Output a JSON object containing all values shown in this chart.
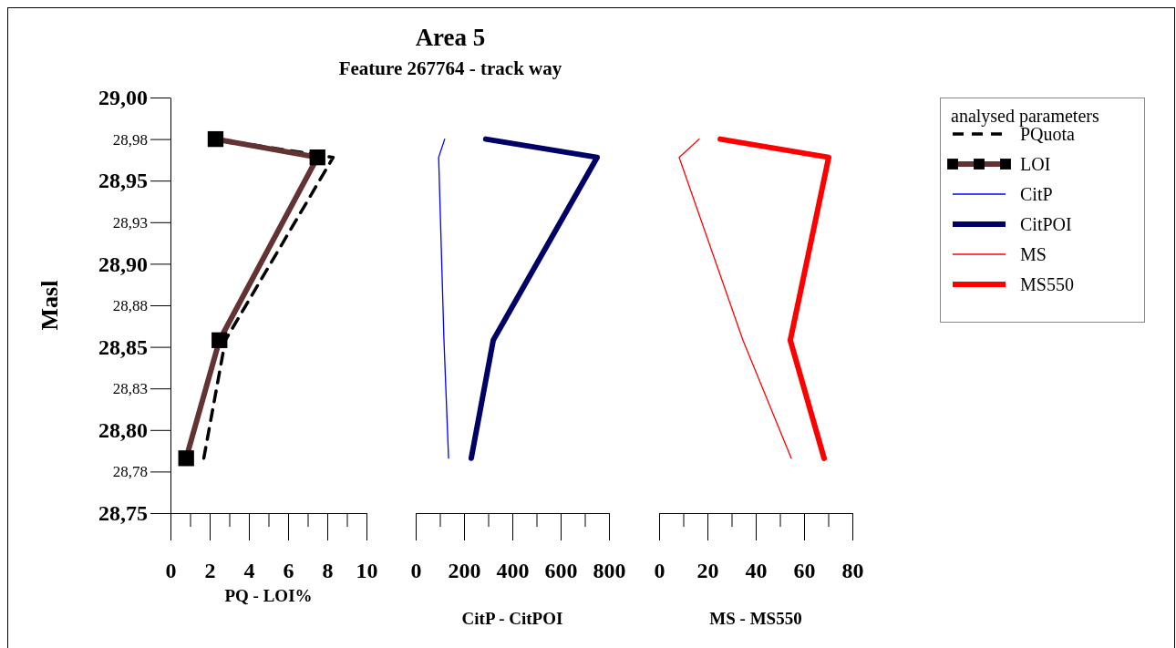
{
  "chart_data": [
    {
      "type": "line",
      "ylabel": "Masl",
      "xlabel": "PQ - LOI%",
      "legend": "right",
      "legend_title": "analysed parameters",
      "ylim": [
        28.75,
        29.0
      ],
      "yticks": [
        {
          "value": 29.0,
          "label": "29,00"
        },
        {
          "value": 28.975,
          "label": "28,98"
        },
        {
          "value": 28.95,
          "label": "28,95"
        },
        {
          "value": 28.925,
          "label": "28,93"
        },
        {
          "value": 28.9,
          "label": "28,90"
        },
        {
          "value": 28.875,
          "label": "28,88"
        },
        {
          "value": 28.85,
          "label": "28,85"
        },
        {
          "value": 28.825,
          "label": "28,83"
        },
        {
          "value": 28.8,
          "label": "28,80"
        },
        {
          "value": 28.775,
          "label": "28,78"
        },
        {
          "value": 28.75,
          "label": "28,75"
        }
      ],
      "xlim": [
        0,
        10
      ],
      "xticks": [
        0,
        {
          "value": 1,
          "label": null
        },
        2,
        {
          "value": 3,
          "label": null
        },
        4,
        {
          "value": 5,
          "label": null
        },
        6,
        {
          "value": 7,
          "label": null
        },
        8,
        {
          "value": 9,
          "label": null
        },
        10
      ],
      "series": [
        {
          "name": "PQuota",
          "color": "#000000",
          "line_style": "dashed",
          "marker": "none",
          "x": [
            2.3,
            8.3,
            2.8,
            1.7
          ],
          "values": [
            28.975,
            28.964,
            28.854,
            28.783
          ]
        },
        {
          "name": "LOI",
          "color": "#633333",
          "line_style": "solid",
          "marker": "square",
          "x": [
            2.3,
            7.5,
            2.5,
            0.8
          ],
          "values": [
            28.975,
            28.964,
            28.854,
            28.783
          ]
        }
      ]
    },
    {
      "type": "line",
      "title": "Area 5",
      "subtitle": "Feature 267764 - track way",
      "xlabel": "CitP - CitPOI",
      "legend": "right",
      "tick_labels": "x",
      "ylim": [
        28.75,
        29.0
      ],
      "xlim": [
        0,
        800
      ],
      "xticks": [
        0,
        {
          "value": 100,
          "label": null
        },
        200,
        {
          "value": 300,
          "label": null
        },
        400,
        {
          "value": 500,
          "label": null
        },
        600,
        {
          "value": 700,
          "label": null
        },
        800
      ],
      "series": [
        {
          "name": "CitP",
          "color": "#0000ff",
          "line_style": "solid",
          "marker": "none",
          "x": [
            120,
            95,
            117,
            136
          ],
          "values": [
            28.975,
            28.964,
            28.854,
            28.783
          ]
        },
        {
          "name": "CitPOI",
          "color": "#000066",
          "line_style": "solid",
          "marker": "none",
          "x": [
            290,
            751,
            321,
            230
          ],
          "values": [
            28.975,
            28.964,
            28.854,
            28.783
          ]
        }
      ]
    },
    {
      "type": "line",
      "xlabel": "MS - MS550",
      "legend": "right",
      "tick_labels": "x",
      "ylim": [
        28.75,
        29.0
      ],
      "xlim": [
        0,
        80
      ],
      "xticks": [
        0,
        {
          "value": 10,
          "label": null
        },
        20,
        {
          "value": 30,
          "label": null
        },
        40,
        {
          "value": 50,
          "label": null
        },
        60,
        {
          "value": 70,
          "label": null
        },
        80
      ],
      "series": [
        {
          "name": "MS",
          "color": "#ff0000",
          "line_style": "solid",
          "marker": "none",
          "x": [
            16.6,
            8.3,
            34.7,
            54.7
          ],
          "values": [
            28.975,
            28.964,
            28.854,
            28.783
          ]
        },
        {
          "name": "MS550",
          "color": "#ff0000",
          "line_style": "solid",
          "marker": "none",
          "x": [
            25.3,
            70.2,
            54.3,
            68.3
          ],
          "values": [
            28.975,
            28.964,
            28.854,
            28.783
          ]
        }
      ]
    }
  ]
}
